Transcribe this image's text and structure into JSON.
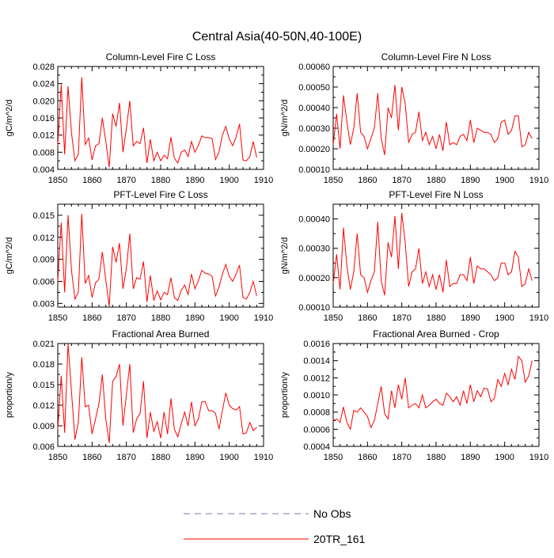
{
  "figure_title": "Central Asia(40-50N,40-100E)",
  "colors": {
    "series": "#ff0000",
    "obs": "#7777bb",
    "axis": "#000000"
  },
  "legend": [
    {
      "label": "No Obs",
      "style": "dashed",
      "color": "#7777bb"
    },
    {
      "label": "20TR_161",
      "style": "solid",
      "color": "#ff0000"
    }
  ],
  "chart_data": [
    {
      "type": "line",
      "title": "Column-Level Fire C Loss",
      "ylabel": "gC/m^2/d",
      "xlim": [
        1850,
        1910
      ],
      "ylim": [
        0.004,
        0.028
      ],
      "xticks": [
        "1850",
        "1860",
        "1870",
        "1880",
        "1890",
        "1900",
        "1910"
      ],
      "yticks": [
        "0.004",
        "0.008",
        "0.012",
        "0.016",
        "0.020",
        "0.024",
        "0.028"
      ],
      "x_start": 1850,
      "series": [
        {
          "name": "20TR_161",
          "values": [
            0.0095,
            0.0238,
            0.0075,
            0.0234,
            0.0125,
            0.006,
            0.0075,
            0.0255,
            0.0098,
            0.0113,
            0.0062,
            0.0095,
            0.01,
            0.016,
            0.0105,
            0.0045,
            0.017,
            0.014,
            0.0195,
            0.008,
            0.0135,
            0.02,
            0.0095,
            0.0105,
            0.01,
            0.0137,
            0.0055,
            0.011,
            0.006,
            0.008,
            0.006,
            0.0073,
            0.0065,
            0.0115,
            0.0066,
            0.0055,
            0.008,
            0.0085,
            0.007,
            0.0105,
            0.008,
            0.0096,
            0.0118,
            0.0114,
            0.0114,
            0.0112,
            0.0063,
            0.008,
            0.012,
            0.014,
            0.0111,
            0.0095,
            0.0115,
            0.0146,
            0.0062,
            0.006,
            0.007,
            0.0105,
            0.0068
          ]
        }
      ]
    },
    {
      "type": "line",
      "title": "Column-Level Fire N Loss",
      "ylabel": "gN/m^2/d",
      "xlim": [
        1850,
        1910
      ],
      "ylim": [
        0.0001,
        0.0006
      ],
      "xticks": [
        "1850",
        "1860",
        "1870",
        "1880",
        "1890",
        "1900",
        "1910"
      ],
      "yticks": [
        "0.00010",
        "0.00020",
        "0.00030",
        "0.00040",
        "0.00050",
        "0.00060"
      ],
      "x_start": 1850,
      "series": [
        {
          "name": "20TR_161",
          "values": [
            0.00022,
            0.00037,
            0.0002,
            0.00046,
            0.00033,
            0.00022,
            0.0003,
            0.00047,
            0.00028,
            0.00026,
            0.0002,
            0.00025,
            0.0003,
            0.00047,
            0.00025,
            0.00017,
            0.0004,
            0.00035,
            0.00051,
            0.00029,
            0.0005,
            0.00042,
            0.00023,
            0.00027,
            0.00028,
            0.00038,
            0.00024,
            0.00028,
            0.00022,
            0.00026,
            0.0002,
            0.00027,
            0.00019,
            0.00033,
            0.00022,
            0.00023,
            0.00022,
            0.00026,
            0.00027,
            0.00024,
            0.00034,
            0.00023,
            0.0003,
            0.00029,
            0.00028,
            0.00028,
            0.00027,
            0.00023,
            0.00025,
            0.00033,
            0.00034,
            0.00027,
            0.00029,
            0.00036,
            0.00036,
            0.00021,
            0.00022,
            0.00028,
            0.00025
          ]
        }
      ]
    },
    {
      "type": "line",
      "title": "PFT-Level Fire C Loss",
      "ylabel": "gC/m^2/d",
      "xlim": [
        1850,
        1910
      ],
      "ylim": [
        0.0025,
        0.0165
      ],
      "xticks": [
        "1850",
        "1860",
        "1870",
        "1880",
        "1890",
        "1900",
        "1910"
      ],
      "yticks": [
        "0.003",
        "0.006",
        "0.009",
        "0.012",
        "0.015"
      ],
      "x_start": 1850,
      "series": [
        {
          "name": "20TR_161",
          "values": [
            0.006,
            0.014,
            0.0045,
            0.015,
            0.0075,
            0.0036,
            0.0045,
            0.0152,
            0.0057,
            0.0068,
            0.0038,
            0.0058,
            0.0063,
            0.01,
            0.0062,
            0.0026,
            0.0107,
            0.0086,
            0.0112,
            0.005,
            0.0077,
            0.0125,
            0.005,
            0.0065,
            0.0063,
            0.0087,
            0.0032,
            0.0068,
            0.0034,
            0.0047,
            0.0035,
            0.0045,
            0.0042,
            0.0065,
            0.0038,
            0.0034,
            0.0048,
            0.0055,
            0.0042,
            0.007,
            0.005,
            0.0061,
            0.0075,
            0.0071,
            0.007,
            0.0067,
            0.004,
            0.0052,
            0.007,
            0.0083,
            0.0067,
            0.006,
            0.007,
            0.0082,
            0.0038,
            0.0036,
            0.0045,
            0.006,
            0.004
          ]
        }
      ]
    },
    {
      "type": "line",
      "title": "PFT-Level Fire N Loss",
      "ylabel": "gN/m^2/d",
      "xlim": [
        1850,
        1910
      ],
      "ylim": [
        0.0001,
        0.00045
      ],
      "xticks": [
        "1850",
        "1860",
        "1870",
        "1880",
        "1890",
        "1900",
        "1910"
      ],
      "yticks": [
        "0.00010",
        "0.00020",
        "0.00030",
        "0.00040"
      ],
      "x_start": 1850,
      "series": [
        {
          "name": "20TR_161",
          "values": [
            0.00018,
            0.00028,
            0.00016,
            0.00037,
            0.00024,
            0.00016,
            0.00022,
            0.00035,
            0.00021,
            0.0002,
            0.00015,
            0.00019,
            0.00022,
            0.00039,
            0.00019,
            0.00014,
            0.00032,
            0.00027,
            0.00041,
            0.00023,
            0.00042,
            0.00032,
            0.00017,
            0.00022,
            0.00023,
            0.0003,
            0.00018,
            0.00022,
            0.00017,
            0.00021,
            0.00016,
            0.00021,
            0.00015,
            0.00026,
            0.00017,
            0.00018,
            0.00018,
            0.00021,
            0.00021,
            0.00019,
            0.00027,
            0.00018,
            0.00024,
            0.00023,
            0.00023,
            0.00022,
            0.00021,
            0.00019,
            0.0002,
            0.00025,
            0.00025,
            0.00021,
            0.00022,
            0.00029,
            0.00027,
            0.00017,
            0.00018,
            0.00023,
            0.00019
          ]
        }
      ]
    },
    {
      "type": "line",
      "title": "Fractional Area Burned",
      "ylabel": "proportion/y",
      "xlim": [
        1850,
        1910
      ],
      "ylim": [
        0.006,
        0.021
      ],
      "xticks": [
        "1850",
        "1860",
        "1870",
        "1880",
        "1890",
        "1900",
        "1910"
      ],
      "yticks": [
        "0.006",
        "0.009",
        "0.012",
        "0.015",
        "0.018",
        "0.021"
      ],
      "x_start": 1850,
      "series": [
        {
          "name": "20TR_161",
          "values": [
            0.0085,
            0.0163,
            0.008,
            0.021,
            0.014,
            0.007,
            0.0095,
            0.019,
            0.0118,
            0.012,
            0.0078,
            0.01,
            0.0122,
            0.0165,
            0.01,
            0.0065,
            0.0155,
            0.0162,
            0.018,
            0.009,
            0.0135,
            0.018,
            0.008,
            0.01,
            0.0108,
            0.0155,
            0.0072,
            0.011,
            0.0082,
            0.0096,
            0.0072,
            0.011,
            0.0078,
            0.013,
            0.0085,
            0.0074,
            0.0093,
            0.011,
            0.009,
            0.0125,
            0.009,
            0.01,
            0.0125,
            0.0125,
            0.0112,
            0.0112,
            0.0108,
            0.0085,
            0.0112,
            0.0138,
            0.012,
            0.0115,
            0.0113,
            0.0118,
            0.0078,
            0.008,
            0.0095,
            0.0083,
            0.0088
          ]
        }
      ]
    },
    {
      "type": "line",
      "title": "Fractional Area Burned - Crop",
      "ylabel": "proportion/y",
      "xlim": [
        1850,
        1910
      ],
      "ylim": [
        0.0004,
        0.0016
      ],
      "xticks": [
        "1850",
        "1860",
        "1870",
        "1880",
        "1890",
        "1900",
        "1910"
      ],
      "yticks": [
        "0.0004",
        "0.0006",
        "0.0008",
        "0.0010",
        "0.0012",
        "0.0014",
        "0.0016"
      ],
      "x_start": 1850,
      "series": [
        {
          "name": "20TR_161",
          "values": [
            0.0007,
            0.00072,
            0.00068,
            0.00086,
            0.00068,
            0.0006,
            0.00082,
            0.0008,
            0.00085,
            0.0008,
            0.00075,
            0.00062,
            0.0007,
            0.0009,
            0.0011,
            0.00078,
            0.00072,
            0.00105,
            0.00085,
            0.00112,
            0.00095,
            0.0012,
            0.00085,
            0.00088,
            0.0009,
            0.00085,
            0.001,
            0.00085,
            0.00088,
            0.00092,
            0.00095,
            0.0009,
            0.00088,
            0.00102,
            0.00098,
            0.00092,
            0.00098,
            0.00088,
            0.00105,
            0.0009,
            0.00112,
            0.00092,
            0.00105,
            0.00098,
            0.00108,
            0.00107,
            0.00092,
            0.00096,
            0.00118,
            0.0011,
            0.00125,
            0.00112,
            0.0013,
            0.00118,
            0.00145,
            0.0014,
            0.00115,
            0.00122,
            0.0014
          ]
        }
      ]
    }
  ]
}
